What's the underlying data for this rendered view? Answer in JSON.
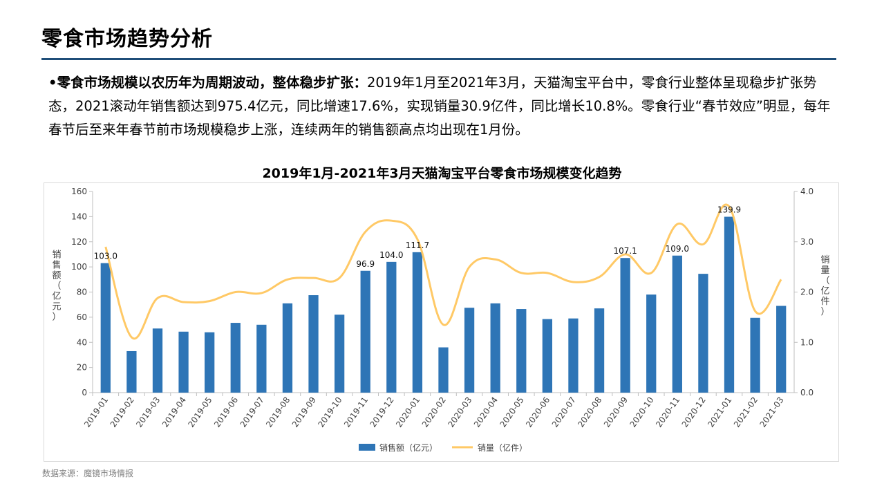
{
  "page": {
    "title": "零食市场趋势分析",
    "paragraph_lead": "•零食市场规模以农历年为周期波动，整体稳步扩张：",
    "paragraph_body": "2019年1月至2021年3月，天猫淘宝平台中，零食行业整体呈现稳步扩张势态，2021滚动年销售额达到975.4亿元，同比增速17.6%，实现销量30.9亿件，同比增长10.8%。零食行业“春节效应”明显，每年春节后至来年春节前市场规模稳步上涨，连续两年的销售额高点均出现在1月份。",
    "source": "数据来源：魔镜市场情报"
  },
  "colors": {
    "bar": "#2e75b6",
    "line": "#ffc966",
    "title_rule": "#1f4e79"
  },
  "chart_data": {
    "type": "bar+line",
    "title": "2019年1月-2021年3月天猫淘宝平台零食市场规模变化趋势",
    "categories": [
      "2019-01",
      "2019-02",
      "2019-03",
      "2019-04",
      "2019-05",
      "2019-06",
      "2019-07",
      "2019-08",
      "2019-09",
      "2019-10",
      "2019-11",
      "2019-12",
      "2020-01",
      "2020-02",
      "2020-03",
      "2020-04",
      "2020-05",
      "2020-06",
      "2020-07",
      "2020-08",
      "2020-09",
      "2020-10",
      "2020-11",
      "2020-12",
      "2021-01",
      "2021-02",
      "2021-03"
    ],
    "y_left_label": "销售额（亿元）",
    "y_right_label": "销量（亿件）",
    "y_left_range": [
      0,
      160
    ],
    "y_left_ticks": [
      "0",
      "20",
      "40",
      "60",
      "80",
      "100",
      "120",
      "140",
      "160"
    ],
    "y_right_range": [
      0,
      4
    ],
    "y_right_ticks": [
      "0.0",
      "1.0",
      "2.0",
      "3.0",
      "4.0"
    ],
    "grid": false,
    "legend_position": "bottom",
    "series": [
      {
        "name": "销售额（亿元）",
        "type": "bar",
        "axis": "left",
        "values": [
          103.0,
          33,
          51,
          48.5,
          48,
          55.5,
          54,
          71,
          77.5,
          62,
          96.9,
          104.0,
          111.7,
          36,
          67.5,
          71,
          66.5,
          58.5,
          59,
          67,
          107.1,
          78,
          109.0,
          94.5,
          139.9,
          59.5,
          69
        ],
        "labels": [
          "103.0",
          "",
          "",
          "",
          "",
          "",
          "",
          "",
          "",
          "",
          "96.9",
          "104.0",
          "111.7",
          "",
          "",
          "",
          "",
          "",
          "",
          "",
          "107.1",
          "",
          "109.0",
          "",
          "139.9",
          "",
          ""
        ]
      },
      {
        "name": "销量（亿件）",
        "type": "line",
        "axis": "right",
        "values": [
          2.9,
          1.1,
          1.88,
          1.8,
          1.82,
          2.0,
          1.98,
          2.25,
          2.28,
          2.28,
          3.2,
          3.42,
          3.05,
          1.35,
          2.5,
          2.65,
          2.38,
          2.38,
          2.2,
          2.3,
          2.75,
          2.38,
          3.35,
          2.95,
          3.7,
          1.62,
          2.25
        ]
      }
    ]
  }
}
